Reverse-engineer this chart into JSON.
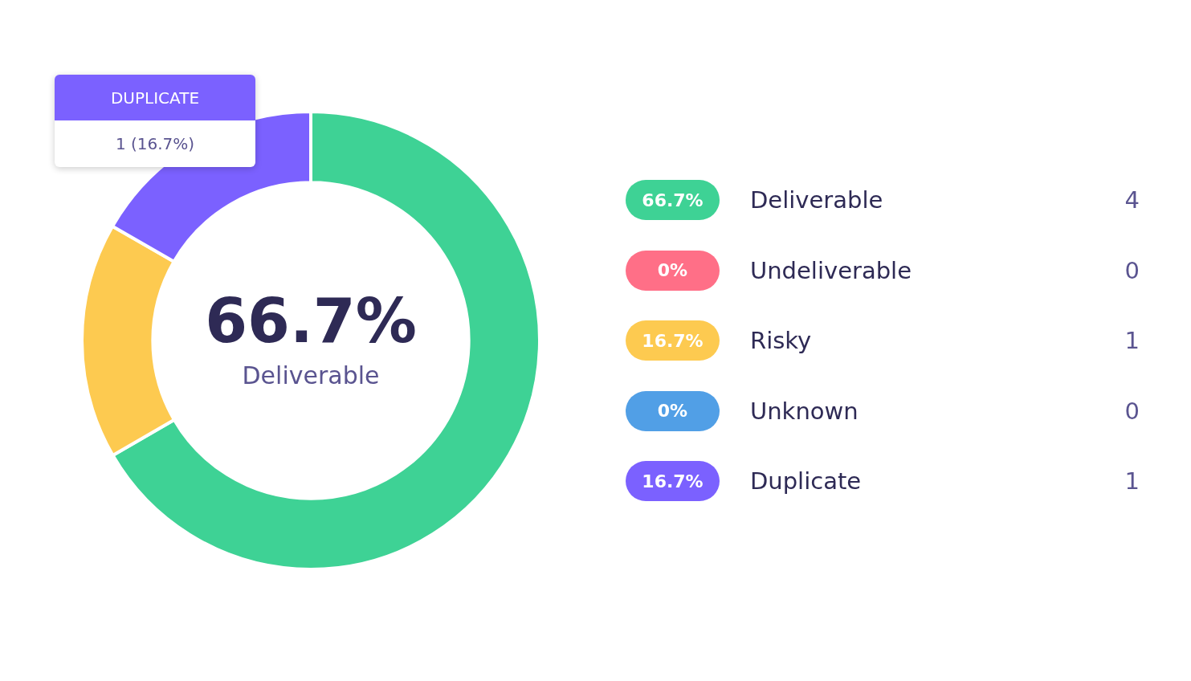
{
  "chart_data": {
    "type": "donut",
    "categories": [
      "Deliverable",
      "Undeliverable",
      "Risky",
      "Unknown",
      "Duplicate"
    ],
    "values": [
      66.7,
      0,
      16.7,
      0,
      16.7
    ],
    "colors": [
      "#3ed295",
      "#ff6f87",
      "#fdca50",
      "#519fe6",
      "#7b61ff"
    ],
    "legend": "right",
    "annotations": [
      "66.7%",
      "Deliverable",
      "DUPLICATE",
      "1 (16.7%)",
      {
        "text": "66.7%",
        "x": "Deliverable"
      },
      {
        "text": "0%",
        "x": "Undeliverable"
      },
      {
        "text": "16.7%",
        "x": "Risky"
      },
      {
        "text": "0%",
        "x": "Unknown"
      },
      {
        "text": "16.7%",
        "x": "Duplicate"
      },
      {
        "text": "4",
        "x": "Deliverable"
      },
      {
        "text": "0",
        "x": "Undeliverable"
      },
      {
        "text": "1",
        "x": "Risky"
      },
      {
        "text": "0",
        "x": "Unknown"
      },
      {
        "text": "1",
        "x": "Duplicate"
      }
    ]
  }
}
